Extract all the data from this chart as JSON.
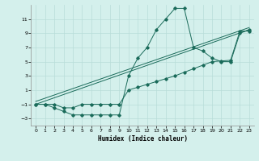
{
  "xlabel": "Humidex (Indice chaleur)",
  "bg_color": "#d4f0ec",
  "grid_color": "#b8ddd8",
  "line_color": "#1a6b5a",
  "xlim": [
    -0.5,
    23.5
  ],
  "ylim": [
    -4,
    13
  ],
  "x_ticks": [
    0,
    1,
    2,
    3,
    4,
    5,
    6,
    7,
    8,
    9,
    10,
    11,
    12,
    13,
    14,
    15,
    16,
    17,
    18,
    19,
    20,
    21,
    22,
    23
  ],
  "y_ticks": [
    -3,
    -1,
    1,
    3,
    5,
    7,
    9,
    11
  ],
  "series1_x": [
    0,
    1,
    2,
    3,
    4,
    5,
    6,
    7,
    8,
    9,
    10,
    11,
    12,
    13,
    14,
    15,
    16,
    17,
    18,
    19,
    20,
    21,
    22,
    23
  ],
  "series1_y": [
    -1,
    -1,
    -1.5,
    -2,
    -2.5,
    -2.5,
    -2.5,
    -2.5,
    -2.5,
    -2.5,
    3,
    5.5,
    7,
    9.5,
    11,
    12.5,
    12.5,
    7,
    6.5,
    5.5,
    5,
    5,
    9,
    9.5
  ],
  "series2_x": [
    0,
    1,
    2,
    3,
    4,
    5,
    6,
    7,
    8,
    9,
    10,
    11,
    12,
    13,
    14,
    15,
    16,
    17,
    18,
    19,
    20,
    21,
    22,
    23
  ],
  "series2_y": [
    -1,
    -1,
    -1,
    -1.5,
    -1.5,
    -1,
    -1,
    -1,
    -1,
    -1,
    1.0,
    1.4,
    1.8,
    2.2,
    2.6,
    3.0,
    3.5,
    4.0,
    4.5,
    5.0,
    5.1,
    5.2,
    9.3,
    9.3
  ],
  "line3_x": [
    0,
    23
  ],
  "line3_y": [
    -1.0,
    9.5
  ],
  "line4_x": [
    0,
    23
  ],
  "line4_y": [
    -0.6,
    9.8
  ]
}
